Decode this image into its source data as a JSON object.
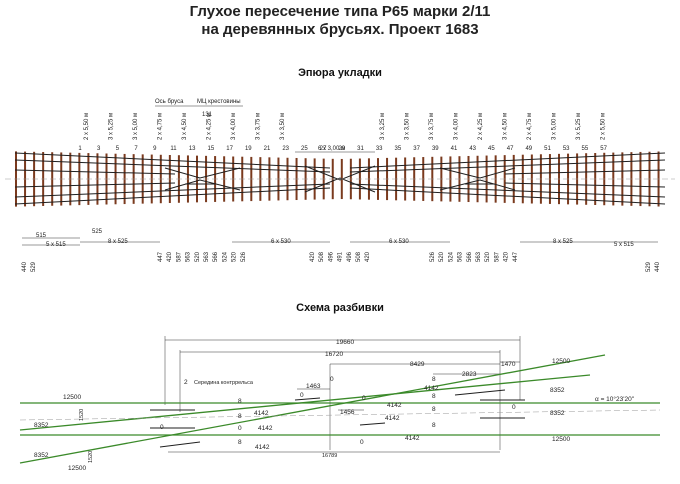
{
  "title": {
    "line1": "Глухое пересечение типа Р65 марки 2/11",
    "line2": "на деревянных брусьях. Проект 1683"
  },
  "section1": {
    "heading": "Эпюра укладки",
    "note_axis": "Ось бруса",
    "note_frog": "МЦ крестовины",
    "note_131": "131",
    "spacing_groups_left": [
      "2 x 5,50 м",
      "3 x 5,25 м",
      "3 x 5,00 м",
      "2 x 4,75 м",
      "3 x 4,50 м",
      "2 x 4,25 м",
      "3 x 4,00 м",
      "3 x 3,75 м",
      "3 x 3,50 м"
    ],
    "spacing_center": "6 x 3,00 м",
    "spacing_groups_right": [
      "3 x 3,25 м",
      "3 x 3,50 м",
      "3 x 3,75 м",
      "3 x 4,00 м",
      "2 x 4,25 м",
      "3 x 4,50 м",
      "2 x 4,75 м",
      "3 x 5,00 м",
      "3 x 5,25 м",
      "2 x 5,50 м"
    ],
    "tie_numbers": [
      "1",
      "3",
      "5",
      "7",
      "9",
      "11",
      "13",
      "15",
      "17",
      "19",
      "21",
      "23",
      "25",
      "27",
      "29",
      "31",
      "33",
      "35",
      "37",
      "39",
      "41",
      "43",
      "45",
      "47",
      "49",
      "51",
      "53",
      "55",
      "57"
    ],
    "dims_left": [
      "515",
      "525",
      "5 x 515",
      "8 x 525"
    ],
    "dims_mid_left": "6 x 530",
    "dims_mid_right": "6 x 530",
    "dims_right": [
      "8 x 525",
      "5 x 515"
    ],
    "bottom_left": [
      "440",
      "529"
    ],
    "bottom_right": [
      "529",
      "440"
    ],
    "spacing_values_left": [
      "447",
      "420",
      "587",
      "563",
      "520",
      "563",
      "566",
      "524",
      "520",
      "526"
    ],
    "spacing_values_mid": [
      "420",
      "508",
      "496",
      "491",
      "496",
      "508",
      "420"
    ],
    "spacing_values_right": [
      "526",
      "520",
      "524",
      "563",
      "566",
      "563",
      "520",
      "587",
      "420",
      "447"
    ]
  },
  "section2": {
    "heading": "Схема разбивки",
    "dim_19660": "19660",
    "dim_16720": "16720",
    "dim_8429": "8429",
    "dim_1470": "1470",
    "dim_2823": "2823",
    "dim_1463": "1463",
    "dim_1456": "1456",
    "dim_16789": "16789",
    "dim_12500": "12500",
    "dim_8352": "8352",
    "dim_1520": "1520",
    "dim_4142": "4142",
    "mark_0": "0",
    "mark_8": "8",
    "mark_2": "2",
    "guard_note": "Середина контррельса",
    "angle": "α = 10°23'20''"
  },
  "colors": {
    "rail": "#1f1f1f",
    "tie": "#7a3a1e",
    "track_green": "#3b8a2a",
    "dim": "#333333"
  }
}
